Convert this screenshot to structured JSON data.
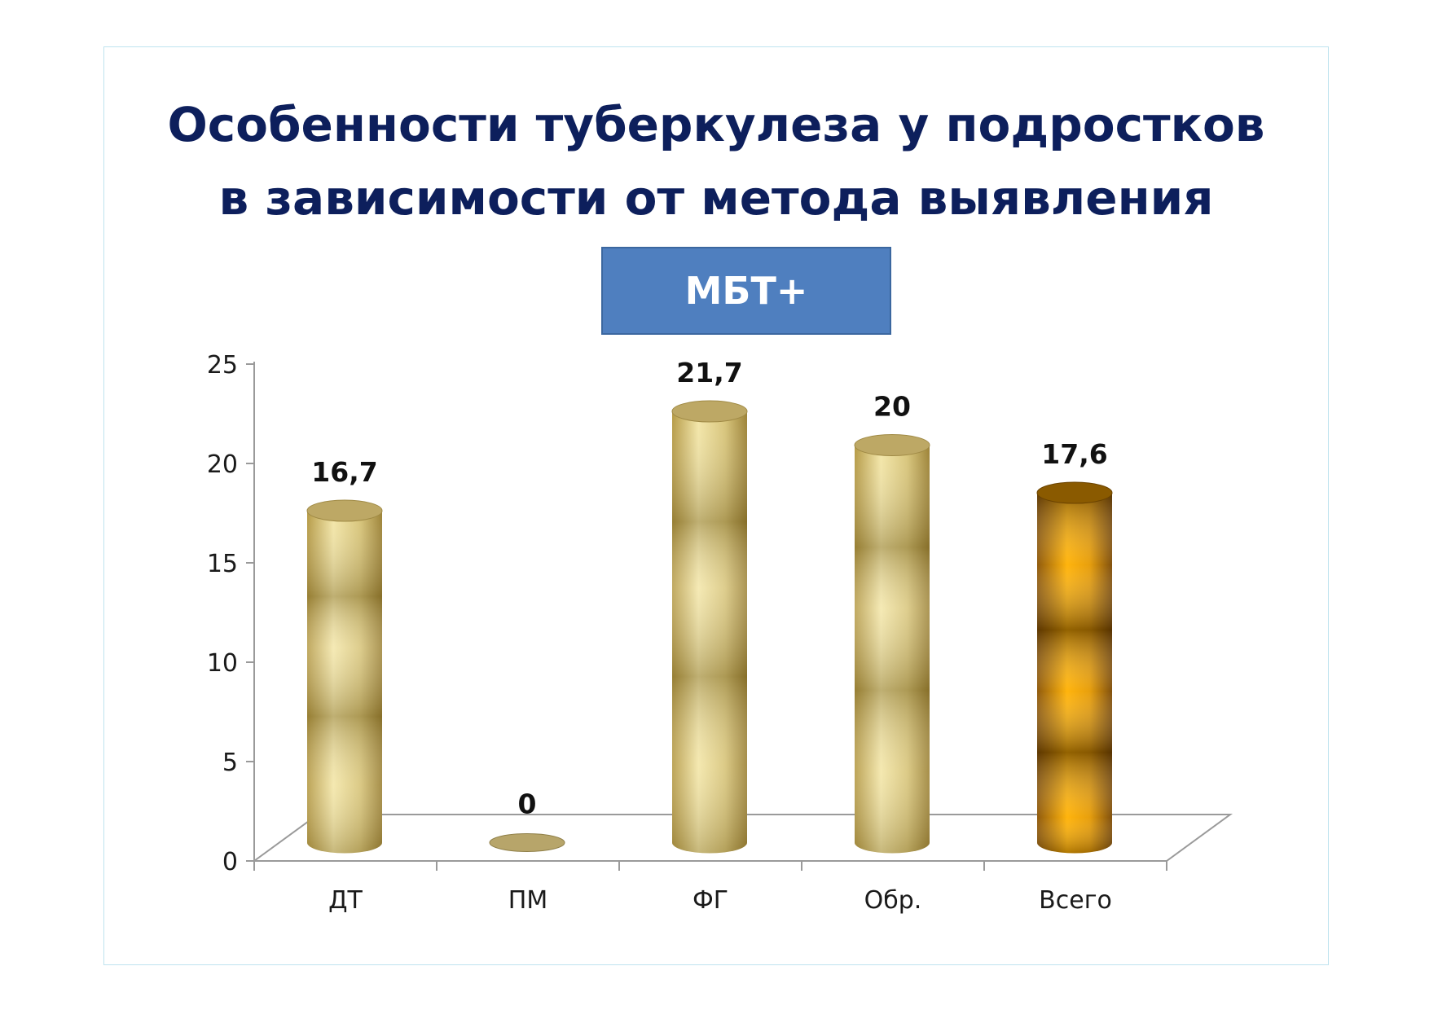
{
  "slide": {
    "title_line1": "Особенности туберкулеза у подростков",
    "title_line2": "в зависимости от метода выявления",
    "badge_label": "МБТ+",
    "badge_color": "#4f7fbf",
    "title_color": "#0d1f5c"
  },
  "chart_data": {
    "type": "bar",
    "style": "3d-cylinder",
    "title": "",
    "xlabel": "",
    "ylabel": "",
    "categories": [
      "ДТ",
      "ПМ",
      "ФГ",
      "Обр.",
      "Всего"
    ],
    "values": [
      16.7,
      0,
      21.7,
      20,
      17.6
    ],
    "data_labels": [
      "16,7",
      "0",
      "21,7",
      "20",
      "17,6"
    ],
    "ylim": [
      0,
      25
    ],
    "yticks": [
      0,
      5,
      10,
      15,
      20,
      25
    ],
    "grid": false,
    "legend": "none",
    "bar_colors": [
      "#d8c57a",
      "#d8c57a",
      "#d8c57a",
      "#d8c57a",
      "#e69a00"
    ],
    "highlighted_category": "Всего"
  }
}
